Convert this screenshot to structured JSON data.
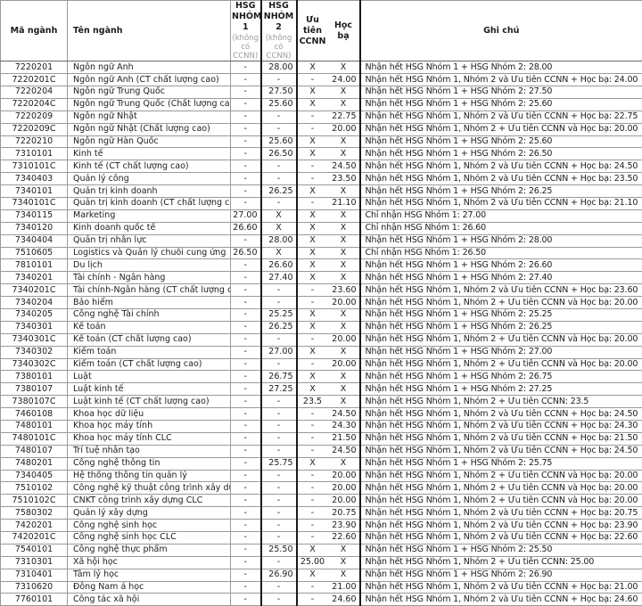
{
  "table": {
    "headers": {
      "code": "Mã ngành",
      "name": "Tên ngành",
      "g1_title": "HSG NHÓM 1",
      "g1_sub": "(không có CCNN)",
      "g2_title": "HSG NHÓM 2",
      "g2_sub": "(không có CCNN)",
      "ccnn": "Ưu tiên CCNN",
      "hocba": "Học bạ",
      "note": "Ghi chú"
    },
    "rows": [
      [
        "7220201",
        "Ngôn ngữ Anh",
        "-",
        "28.00",
        "X",
        "X",
        "Nhận hết HSG Nhóm 1 + HSG Nhóm 2: 28.00"
      ],
      [
        "7220201C",
        "Ngôn ngữ Anh (CT chất lượng cao)",
        "-",
        "-",
        "-",
        "24.00",
        "Nhận hết HSG Nhóm 1, Nhóm 2 và Ưu tiên CCNN + Học bạ: 24.00"
      ],
      [
        "7220204",
        "Ngôn ngữ Trung Quốc",
        "-",
        "27.50",
        "X",
        "X",
        "Nhận hết HSG Nhóm 1 + HSG Nhóm 2: 27.50"
      ],
      [
        "7220204C",
        "Ngôn ngữ Trung Quốc (Chất lượng cao)",
        "-",
        "25.60",
        "X",
        "X",
        "Nhận hết HSG Nhóm 1 + HSG Nhóm 2: 25.60"
      ],
      [
        "7220209",
        "Ngôn ngữ Nhật",
        "-",
        "-",
        "-",
        "22.75",
        "Nhận hết HSG Nhóm 1, Nhóm 2 và Ưu tiên CCNN + Học bạ: 22.75"
      ],
      [
        "7220209C",
        "Ngôn ngữ Nhật  (Chất lượng cao)",
        "-",
        "-",
        "-",
        "20.00",
        "Nhận hết HSG Nhóm 1, Nhóm 2 + Ưu tiên CCNN và Học bạ: 20.00"
      ],
      [
        "7220210",
        "Ngôn ngữ Hàn Quốc",
        "-",
        "25.60",
        "X",
        "X",
        "Nhận hết HSG Nhóm 1 + HSG Nhóm 2: 25.60"
      ],
      [
        "7310101",
        "Kinh tế",
        "-",
        "26.50",
        "X",
        "X",
        "Nhận hết HSG Nhóm 1 + HSG Nhóm 2: 26.50"
      ],
      [
        "7310101C",
        "Kinh tế (CT chất lượng cao)",
        "-",
        "-",
        "-",
        "24.50",
        "Nhận hết HSG Nhóm 1, Nhóm 2 và Ưu tiên CCNN + Học bạ: 24.50"
      ],
      [
        "7340403",
        "Quản lý công",
        "-",
        "-",
        "-",
        "23.50",
        "Nhận hết HSG Nhóm 1, Nhóm 2 và Ưu tiên CCNN + Học bạ: 23.50"
      ],
      [
        "7340101",
        "Quản trị kinh doanh",
        "-",
        "26.25",
        "X",
        "X",
        "Nhận hết HSG Nhóm 1 + HSG Nhóm 2: 26.25"
      ],
      [
        "7340101C",
        "Quản trị kinh doanh (CT chất lượng cao)",
        "-",
        "-",
        "-",
        "21.10",
        "Nhận hết HSG Nhóm 1, Nhóm 2 và Ưu tiên CCNN + Học bạ: 21.10"
      ],
      [
        "7340115",
        "Marketing",
        "27.00",
        "X",
        "X",
        "X",
        "Chỉ nhận HSG Nhóm 1: 27.00"
      ],
      [
        "7340120",
        "Kinh doanh quốc tế",
        "26.60",
        "X",
        "X",
        "X",
        "Chỉ nhận HSG Nhóm 1: 26.60"
      ],
      [
        "7340404",
        "Quản trị nhân lực",
        "-",
        "28.00",
        "X",
        "X",
        "Nhận hết HSG Nhóm 1 + HSG Nhóm 2: 28.00"
      ],
      [
        "7510605",
        "Logistics và Quản lý chuỗi cung ứng",
        "26.50",
        "X",
        "X",
        "X",
        "Chỉ nhận HSG Nhóm 1: 26.50"
      ],
      [
        "7810101",
        "Du lịch",
        "-",
        "26.60",
        "X",
        "X",
        "Nhận hết HSG Nhóm 1 + HSG Nhóm 2: 26.60"
      ],
      [
        "7340201",
        "Tài chính - Ngân hàng",
        "-",
        "27.40",
        "X",
        "X",
        "Nhận hết HSG Nhóm 1 + HSG Nhóm 2: 27.40"
      ],
      [
        "7340201C",
        "Tài chính-Ngân hàng (CT chất lượng cao)",
        "-",
        "-",
        "-",
        "23.60",
        "Nhận hết HSG Nhóm 1, Nhóm 2 và Ưu tiên CCNN + Học bạ: 23.60"
      ],
      [
        "7340204",
        "Bảo hiểm",
        "-",
        "-",
        "-",
        "20.00",
        "Nhận hết HSG Nhóm 1, Nhóm 2 + Ưu tiên CCNN và Học bạ: 20.00"
      ],
      [
        "7340205",
        "Công nghệ Tài chính",
        "-",
        "25.25",
        "X",
        "X",
        "Nhận hết HSG Nhóm 1 + HSG Nhóm 2: 25.25"
      ],
      [
        "7340301",
        "Kế toán",
        "-",
        "26.25",
        "X",
        "X",
        "Nhận hết HSG Nhóm 1 + HSG Nhóm 2: 26.25"
      ],
      [
        "7340301C",
        "Kế toán (CT chất lượng cao)",
        "-",
        "-",
        "-",
        "20.00",
        "Nhận hết HSG Nhóm 1, Nhóm 2 + Ưu tiên CCNN và Học bạ: 20.00"
      ],
      [
        "7340302",
        "Kiểm toán",
        "-",
        "27.00",
        "X",
        "X",
        "Nhận hết HSG Nhóm 1 + HSG Nhóm 2: 27.00"
      ],
      [
        "7340302C",
        "Kiểm toán (CT chất lượng cao)",
        "-",
        "-",
        "-",
        "20.00",
        "Nhận hết HSG Nhóm 1, Nhóm 2 + Ưu tiên CCNN và Học bạ: 20.00"
      ],
      [
        "7380101",
        "Luật",
        "-",
        "26.75",
        "X",
        "X",
        "Nhận hết HSG Nhóm 1 + HSG Nhóm 2: 26.75"
      ],
      [
        "7380107",
        "Luật kinh tế",
        "-",
        "27.25",
        "X",
        "X",
        "Nhận hết HSG Nhóm 1 + HSG Nhóm 2: 27.25"
      ],
      [
        "7380107C",
        "Luật kinh tế (CT chất lượng cao)",
        "-",
        "-",
        "23.5",
        "X",
        "Nhận hết HSG Nhóm 1, Nhóm 2 + Ưu tiên CCNN: 23.5"
      ],
      [
        "7460108",
        "Khoa học dữ liệu",
        "-",
        "-",
        "-",
        "24.50",
        "Nhận hết HSG Nhóm 1, Nhóm 2 và Ưu tiên CCNN + Học bạ: 24.50"
      ],
      [
        "7480101",
        "Khoa học máy tính",
        "-",
        "-",
        "-",
        "24.30",
        "Nhận hết HSG Nhóm 1, Nhóm 2 và Ưu tiên CCNN + Học bạ: 24.30"
      ],
      [
        "7480101C",
        "Khoa học máy tính CLC",
        "-",
        "-",
        "-",
        "21.50",
        "Nhận hết HSG Nhóm 1, Nhóm 2 và Ưu tiên CCNN + Học bạ: 21.50"
      ],
      [
        "7480107",
        "Trí tuệ nhân tạo",
        "-",
        "-",
        "-",
        "24.50",
        "Nhận hết HSG Nhóm 1, Nhóm 2 và Ưu tiên CCNN + Học bạ: 24.50"
      ],
      [
        "7480201",
        "Công nghệ thông tin",
        "-",
        "25.75",
        "X",
        "X",
        "Nhận hết HSG Nhóm 1 + HSG Nhóm 2: 25.75"
      ],
      [
        "7340405",
        "Hệ thống thông tin quản lý",
        "-",
        "-",
        "-",
        "20.00",
        "Nhận hết HSG Nhóm 1, Nhóm 2 + Ưu tiên CCNN và Học bạ: 20.00"
      ],
      [
        "7510102",
        "Công nghệ kỹ thuật công trình xây dựng",
        "-",
        "-",
        "-",
        "20.00",
        "Nhận hết HSG Nhóm 1, Nhóm 2 + Ưu tiên CCNN và Học bạ: 20.00"
      ],
      [
        "7510102C",
        "CNKT công trình xây dựng CLC",
        "-",
        "-",
        "-",
        "20.00",
        "Nhận hết HSG Nhóm 1, Nhóm 2 + Ưu tiên CCNN và Học bạ: 20.00"
      ],
      [
        "7580302",
        "Quản lý xây dựng",
        "-",
        "-",
        "-",
        "20.75",
        "Nhận hết HSG Nhóm 1, Nhóm 2 và Ưu tiên CCNN + Học bạ: 20.75"
      ],
      [
        "7420201",
        "Công nghệ sinh học",
        "-",
        "-",
        "-",
        "23.90",
        "Nhận hết HSG Nhóm 1, Nhóm 2 và Ưu tiên CCNN + Học bạ: 23.90"
      ],
      [
        "7420201C",
        "Công nghệ sinh học CLC",
        "-",
        "-",
        "-",
        "22.60",
        "Nhận hết HSG Nhóm 1, Nhóm 2 và Ưu tiên CCNN + Học bạ: 22.60"
      ],
      [
        "7540101",
        "Công nghệ thực phẩm",
        "-",
        "25.50",
        "X",
        "X",
        "Nhận hết HSG Nhóm 1 + HSG Nhóm 2: 25.50"
      ],
      [
        "7310301",
        "Xã hội học",
        "-",
        "-",
        "25.00",
        "X",
        "Nhận hết HSG Nhóm 1, Nhóm 2 + Ưu tiên CCNN: 25.00"
      ],
      [
        "7310401",
        "Tâm lý học",
        "-",
        "26.90",
        "X",
        "X",
        "Nhận hết HSG Nhóm 1 + HSG Nhóm 2: 26.90"
      ],
      [
        "7310620",
        "Đông Nam á học",
        "-",
        "-",
        "-",
        "21.00",
        "Nhận hết HSG Nhóm 1, Nhóm 2 và Ưu tiên CCNN + Học bạ: 21.00"
      ],
      [
        "7760101",
        "Công tác xã hội",
        "-",
        "-",
        "-",
        "24.60",
        "Nhận hết HSG Nhóm 1, Nhóm 2 và Ưu tiên CCNN + Học bạ: 24.60"
      ]
    ]
  }
}
